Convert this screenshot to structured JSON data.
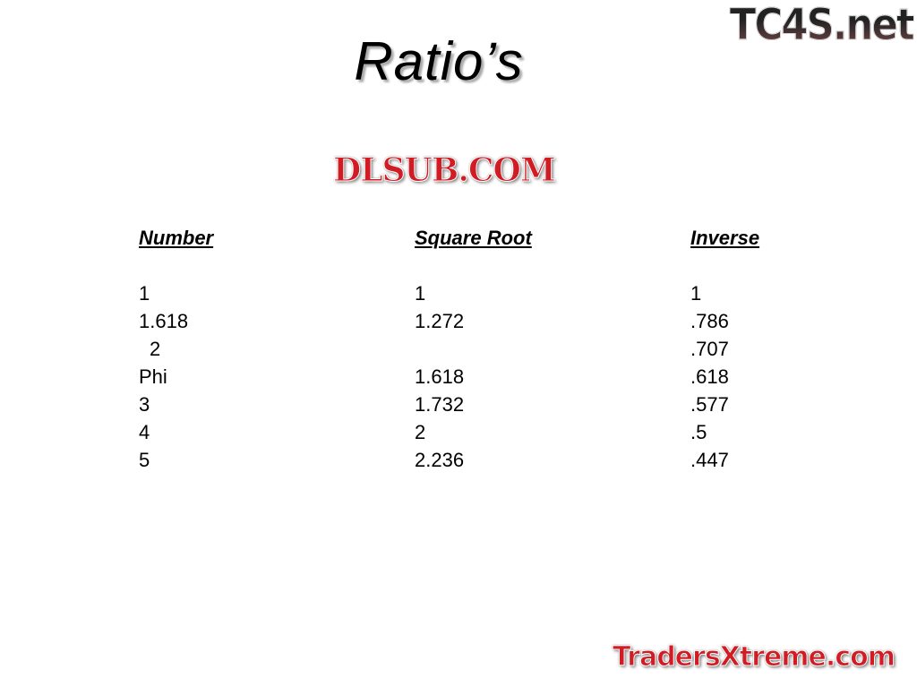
{
  "slide": {
    "title": "Ratio’s"
  },
  "table": {
    "headers": [
      "Number",
      "Square Root",
      "Inverse"
    ],
    "number": [
      "1",
      "1.618",
      "2",
      "Phi",
      "3",
      "4",
      "5"
    ],
    "square_root": [
      "1",
      "1.272",
      "",
      "1.618",
      "1.732",
      "2",
      "2.236"
    ],
    "inverse": [
      "1",
      ".786",
      ".707",
      ".618",
      ".577",
      ".5",
      ".447"
    ]
  },
  "watermarks": {
    "top_right": "TC4S.net",
    "center": "DLSUB.COM",
    "bottom_right": "TradersXtreme.com"
  }
}
